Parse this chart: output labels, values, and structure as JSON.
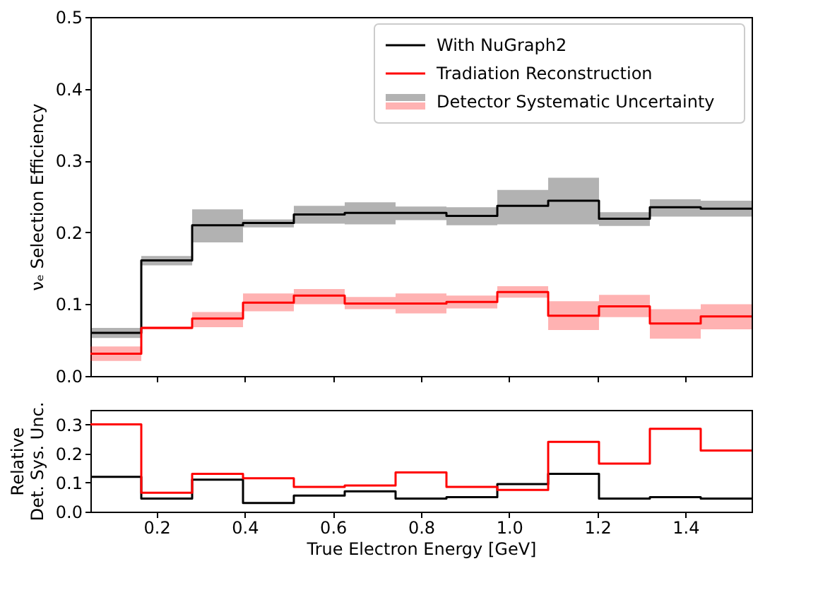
{
  "chart_data": [
    {
      "type": "step",
      "ylabel": "νₑ Selection Efficiency",
      "legend": "top right",
      "tick_labels": "y",
      "x": [
        0.05,
        0.1654,
        0.2808,
        0.3962,
        0.5115,
        0.6269,
        0.7423,
        0.8577,
        0.9731,
        1.0885,
        1.2038,
        1.3192,
        1.4346,
        1.55
      ],
      "xlim": [
        0.05,
        1.55
      ],
      "xticks": [
        0.2,
        0.4,
        0.6,
        0.8,
        1.0,
        1.2,
        1.4
      ],
      "ylim": [
        0,
        0.5
      ],
      "yticks": [
        {
          "value": 0,
          "label": "0.0"
        },
        0.1,
        0.2,
        0.3,
        0.4,
        0.5
      ],
      "series": [
        {
          "name": "With NuGraph2",
          "color": "#000000",
          "values": [
            0.06,
            0.161,
            0.21,
            0.213,
            0.225,
            0.227,
            0.227,
            0.223,
            0.237,
            0.244,
            0.219,
            0.235,
            0.233,
            0.233
          ],
          "lower": [
            0.053,
            0.154,
            0.186,
            0.207,
            0.212,
            0.211,
            0.217,
            0.21,
            0.211,
            0.211,
            0.209,
            0.222,
            0.222,
            0.222
          ],
          "upper": [
            0.067,
            0.167,
            0.232,
            0.218,
            0.237,
            0.242,
            0.236,
            0.235,
            0.259,
            0.276,
            0.228,
            0.246,
            0.244,
            0.244
          ]
        },
        {
          "name": "Tradiation Reconstruction",
          "color": "#ff0000",
          "values": [
            0.031,
            0.067,
            0.08,
            0.102,
            0.112,
            0.101,
            0.101,
            0.103,
            0.117,
            0.084,
            0.097,
            0.073,
            0.083,
            0.083
          ],
          "lower": [
            0.021,
            0.065,
            0.068,
            0.09,
            0.1,
            0.093,
            0.087,
            0.094,
            0.109,
            0.064,
            0.082,
            0.052,
            0.065,
            0.065
          ],
          "upper": [
            0.041,
            0.069,
            0.089,
            0.115,
            0.121,
            0.11,
            0.115,
            0.112,
            0.125,
            0.104,
            0.113,
            0.093,
            0.1,
            0.1
          ]
        }
      ],
      "annotations": [
        "Detector Systematic Uncertainty"
      ]
    },
    {
      "type": "step",
      "xlabel": "True Electron Energy [GeV]",
      "ylabel": "Relative\nDet. Sys. Unc.",
      "x": [
        0.05,
        0.1654,
        0.2808,
        0.3962,
        0.5115,
        0.6269,
        0.7423,
        0.8577,
        0.9731,
        1.0885,
        1.2038,
        1.3192,
        1.4346,
        1.55
      ],
      "xlim": [
        0.05,
        1.55
      ],
      "xticks": [
        0.2,
        0.4,
        0.6,
        0.8,
        {
          "value": 1,
          "label": "1.0"
        },
        1.2,
        1.4
      ],
      "ylim": [
        0,
        0.35
      ],
      "yticks": [
        {
          "value": 0,
          "label": "0.0"
        },
        0.1,
        0.2,
        0.3
      ],
      "series": [
        {
          "color": "#000000",
          "values": [
            0.12,
            0.045,
            0.11,
            0.03,
            0.055,
            0.07,
            0.045,
            0.05,
            0.095,
            0.13,
            0.045,
            0.05,
            0.045,
            0.045
          ]
        },
        {
          "color": "#ff0000",
          "values": [
            0.3,
            0.065,
            0.13,
            0.115,
            0.085,
            0.09,
            0.135,
            0.085,
            0.075,
            0.24,
            0.165,
            0.285,
            0.21,
            0.21
          ]
        }
      ]
    }
  ]
}
